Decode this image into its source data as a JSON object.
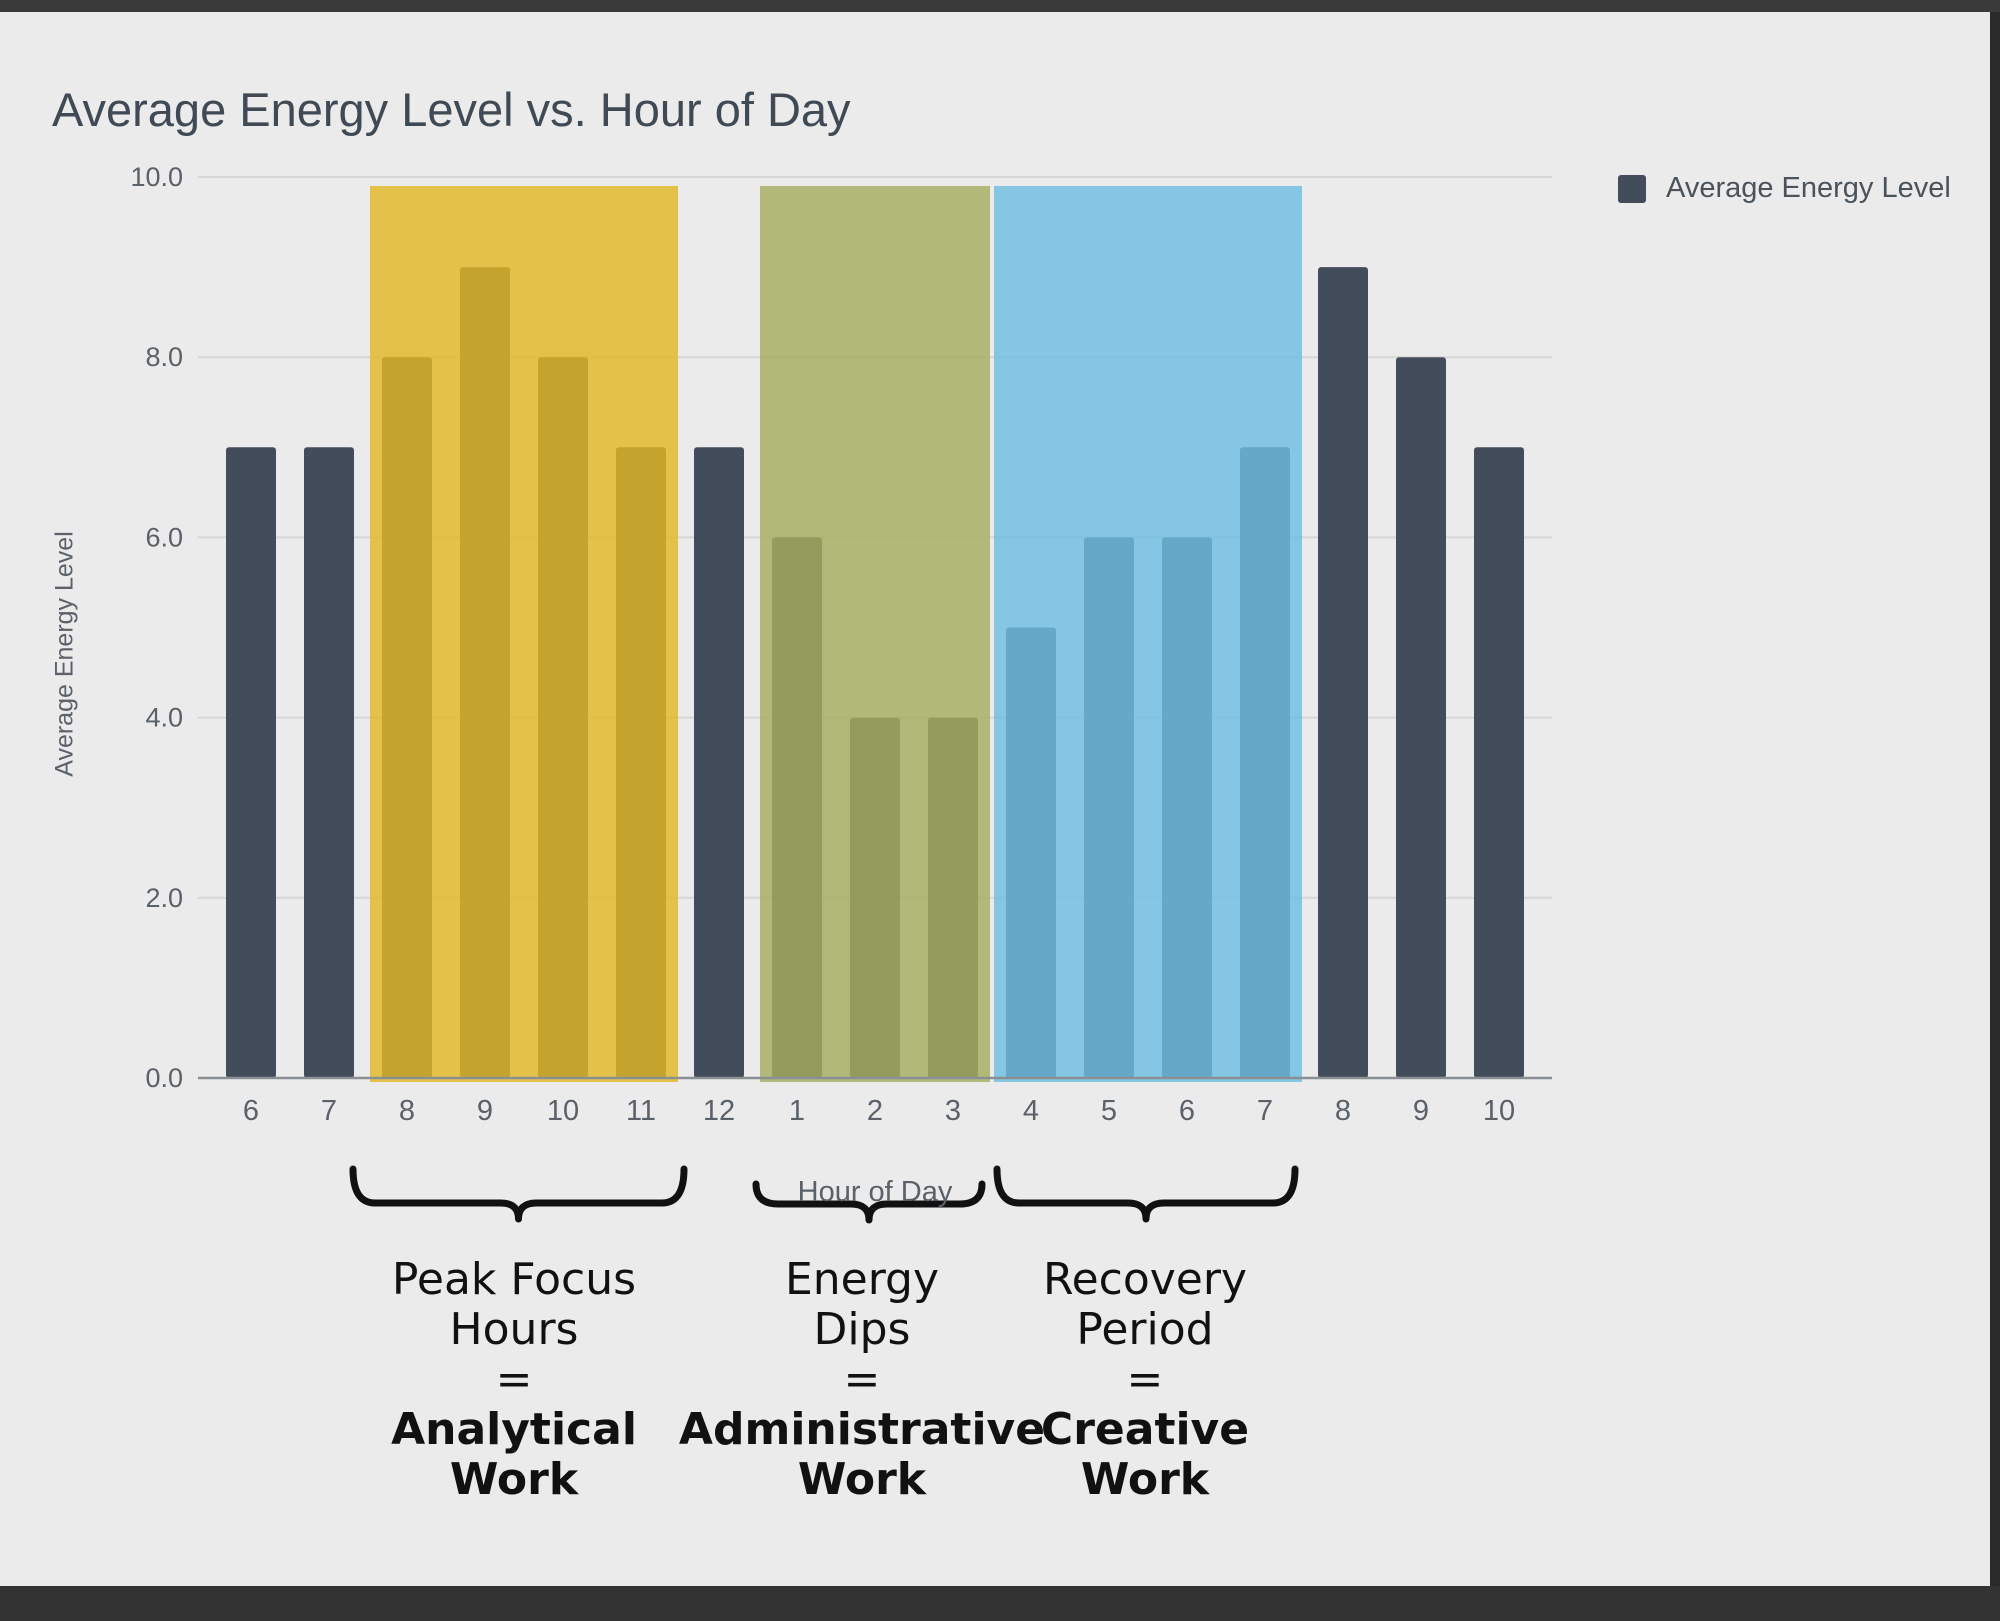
{
  "chart_data": {
    "type": "bar",
    "title": "Average Energy Level vs. Hour of Day",
    "xlabel": "Hour of Day",
    "ylabel": "Average Energy Level",
    "ylim": [
      0,
      10
    ],
    "yticks": [
      "0.0",
      "2.0",
      "4.0",
      "6.0",
      "8.0",
      "10.0"
    ],
    "categories": [
      "6",
      "7",
      "8",
      "9",
      "10",
      "11",
      "12",
      "1",
      "2",
      "3",
      "4",
      "5",
      "6",
      "7",
      "8",
      "9",
      "10"
    ],
    "series": [
      {
        "name": "Average Energy Level",
        "values": [
          7,
          7,
          8,
          9,
          8,
          7,
          7,
          6,
          4,
          4,
          5,
          6,
          6,
          7,
          9,
          8,
          7
        ]
      }
    ],
    "grid": true,
    "legend_position": "top-right",
    "bar_color": "#434c5b",
    "highlight_regions": [
      {
        "from_index": 2,
        "to_index": 5,
        "color": "#e2b824"
      },
      {
        "from_index": 7,
        "to_index": 9,
        "color": "#a5ad5e"
      },
      {
        "from_index": 10,
        "to_index": 13,
        "color": "#6cbde0"
      }
    ]
  },
  "annotations": [
    {
      "line1": "Peak Focus",
      "line2": "Hours",
      "eq": "=",
      "bold1": "Analytical",
      "bold2": "Work"
    },
    {
      "line1": "Energy",
      "line2": "Dips",
      "eq": "=",
      "bold1": "Administrative",
      "bold2": "Work"
    },
    {
      "line1": "Recovery",
      "line2": "Period",
      "eq": "=",
      "bold1": "Creative",
      "bold2": "Work"
    }
  ]
}
